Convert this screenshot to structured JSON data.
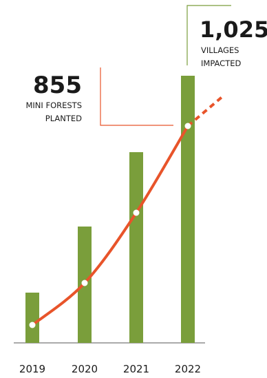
{
  "chart_data": {
    "type": "bar",
    "categories": [
      "2019",
      "2020",
      "2021",
      "2022"
    ],
    "series": [
      {
        "type": "bar",
        "values": [
          73,
          169,
          277,
          388
        ]
      },
      {
        "type": "line",
        "values": [
          26,
          87,
          189,
          315
        ],
        "extrapolated": 360
      }
    ],
    "annotations": [
      {
        "value_label": "855",
        "text_lines": [
          "MINI FORESTS",
          "PLANTED"
        ]
      },
      {
        "value_label": "1,025",
        "text_lines": [
          "VILLAGES",
          "IMPACTED"
        ]
      }
    ],
    "colors": {
      "bar": "#7a9e3b",
      "line": "#e8542a",
      "annotation_mini": "#e8542a",
      "annotation_villages": "#7a9e3b",
      "axis": "#555555"
    }
  }
}
